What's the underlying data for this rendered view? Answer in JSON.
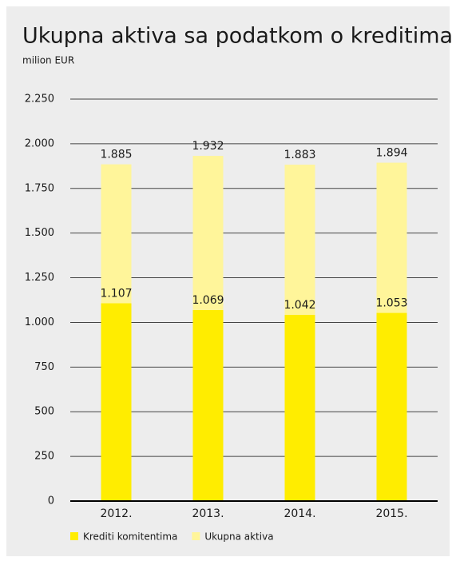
{
  "chart_data": {
    "type": "bar",
    "title": "Ukupna aktiva sa podatkom o kreditima",
    "subtitle": "milion EUR",
    "categories": [
      "2012.",
      "2013.",
      "2014.",
      "2015."
    ],
    "series": [
      {
        "name": "Krediti komitentima",
        "color": "#ffed00",
        "values": [
          1107,
          1069,
          1042,
          1053
        ],
        "value_labels": [
          "1.107",
          "1.069",
          "1.042",
          "1.053"
        ]
      },
      {
        "name": "Ukupna aktiva",
        "color": "#fff59a",
        "values": [
          1885,
          1932,
          1883,
          1894
        ],
        "value_labels": [
          "1.885",
          "1.932",
          "1.883",
          "1.894"
        ]
      }
    ],
    "ylim": [
      0,
      2250
    ],
    "yticks": [
      0,
      250,
      500,
      750,
      {
        "value": 1000,
        "label": "1.000"
      },
      {
        "value": 1250,
        "label": "1.250"
      },
      {
        "value": 1500,
        "label": "1.500"
      },
      {
        "value": 1750,
        "label": "1.750"
      },
      {
        "value": 2000,
        "label": "2.000"
      },
      {
        "value": 2250,
        "label": "2.250"
      }
    ],
    "grid": true
  }
}
